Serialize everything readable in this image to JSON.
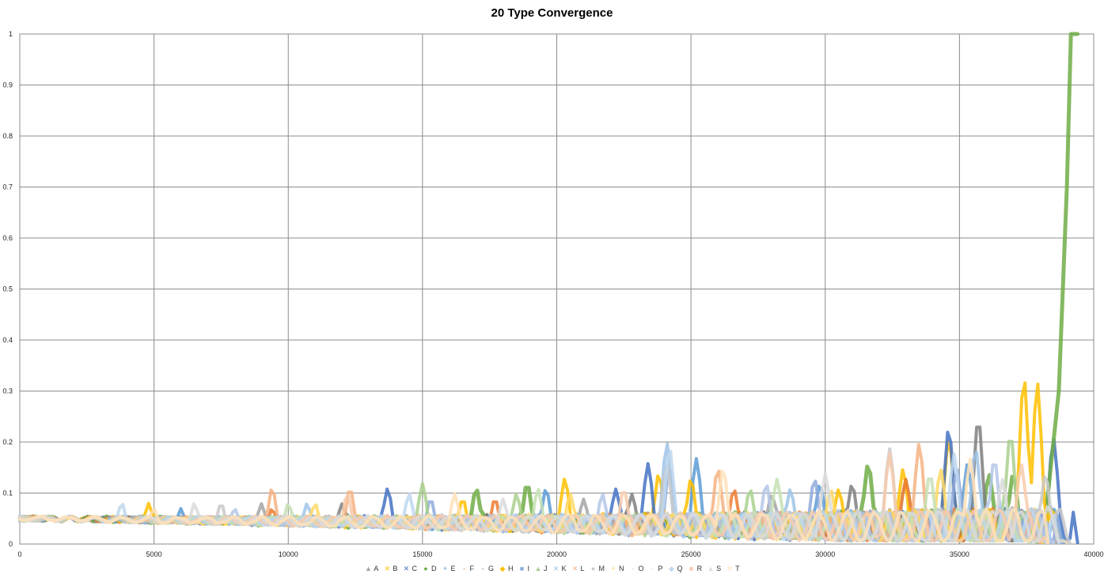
{
  "chart_data": {
    "type": "line",
    "title": "20 Type Convergence",
    "xlabel": "",
    "ylabel": "",
    "xlim": [
      0,
      40000
    ],
    "ylim": [
      0,
      1
    ],
    "x_ticks": [
      "0",
      "5000",
      "10000",
      "15000",
      "20000",
      "25000",
      "30000",
      "35000",
      "40000"
    ],
    "y_ticks": [
      "0",
      "0.1",
      "0.2",
      "0.3",
      "0.4",
      "0.5",
      "0.6",
      "0.7",
      "0.8",
      "0.9",
      "1"
    ],
    "grid": true,
    "legend_position": "bottom",
    "series": [
      {
        "name": "A",
        "marker": "▲",
        "color": "#a5a5a5",
        "peaks": [
          [
            9000,
            0.07
          ],
          [
            21000,
            0.08
          ],
          [
            28000,
            0.09
          ],
          [
            33000,
            0.12
          ]
        ],
        "end": 38500
      },
      {
        "name": "B",
        "marker": "✕",
        "color": "#ffc000",
        "peaks": [
          [
            4800,
            0.07
          ],
          [
            20300,
            0.12
          ],
          [
            23800,
            0.13
          ],
          [
            32900,
            0.14
          ],
          [
            34600,
            0.2
          ]
        ],
        "end": 38200
      },
      {
        "name": "C",
        "marker": "✕",
        "color": "#4472c4",
        "peaks": [
          [
            13700,
            0.1
          ],
          [
            22200,
            0.1
          ],
          [
            23400,
            0.15
          ],
          [
            34600,
            0.22
          ],
          [
            38500,
            0.2
          ]
        ],
        "end": 39300
      },
      {
        "name": "D",
        "marker": "●",
        "color": "#70ad47",
        "peaks": [
          [
            17000,
            0.1
          ],
          [
            18900,
            0.11
          ],
          [
            31600,
            0.15
          ],
          [
            36100,
            0.13
          ],
          [
            37000,
            0.13
          ]
        ],
        "end": 38000,
        "final": [
          [
            38300,
            0.1
          ],
          [
            38700,
            0.3
          ],
          [
            39000,
            0.7
          ],
          [
            39150,
            1.0
          ],
          [
            39400,
            1.0
          ]
        ]
      },
      {
        "name": "E",
        "marker": "+",
        "color": "#5b9bd5",
        "peaks": [
          [
            6000,
            0.06
          ],
          [
            19600,
            0.1
          ],
          [
            25200,
            0.16
          ],
          [
            29800,
            0.11
          ],
          [
            35300,
            0.15
          ]
        ],
        "end": 38800
      },
      {
        "name": "F",
        "marker": "-",
        "color": "#ed7d31",
        "peaks": [
          [
            9400,
            0.06
          ],
          [
            17700,
            0.08
          ],
          [
            26600,
            0.1
          ],
          [
            33000,
            0.12
          ]
        ],
        "end": 38000
      },
      {
        "name": "G",
        "marker": "-",
        "color": "#7f7f7f",
        "peaks": [
          [
            12000,
            0.07
          ],
          [
            22800,
            0.09
          ],
          [
            31000,
            0.11
          ],
          [
            35700,
            0.24
          ]
        ],
        "end": 37800
      },
      {
        "name": "H",
        "marker": "◆",
        "color": "#ffc000",
        "peaks": [
          [
            16500,
            0.08
          ],
          [
            25000,
            0.12
          ],
          [
            30500,
            0.1
          ],
          [
            37400,
            0.32
          ],
          [
            37900,
            0.31
          ]
        ],
        "end": 38900
      },
      {
        "name": "I",
        "marker": "■",
        "color": "#8faadc",
        "peaks": [
          [
            15300,
            0.08
          ],
          [
            24200,
            0.14
          ],
          [
            29600,
            0.12
          ],
          [
            34900,
            0.14
          ]
        ],
        "end": 38700
      },
      {
        "name": "J",
        "marker": "▲",
        "color": "#a9d08e",
        "peaks": [
          [
            15000,
            0.11
          ],
          [
            18500,
            0.09
          ],
          [
            27200,
            0.1
          ],
          [
            36900,
            0.21
          ]
        ],
        "end": 37800
      },
      {
        "name": "K",
        "marker": "✕",
        "color": "#9dc3e6",
        "peaks": [
          [
            10700,
            0.07
          ],
          [
            24100,
            0.19
          ],
          [
            28700,
            0.1
          ],
          [
            35600,
            0.18
          ]
        ],
        "end": 38300
      },
      {
        "name": "L",
        "marker": "✕",
        "color": "#f4b183",
        "peaks": [
          [
            9400,
            0.1
          ],
          [
            12300,
            0.1
          ],
          [
            26000,
            0.14
          ],
          [
            33500,
            0.19
          ]
        ],
        "end": 37900
      },
      {
        "name": "M",
        "marker": "●",
        "color": "#c9c9c9",
        "peaks": [
          [
            7500,
            0.07
          ],
          [
            24100,
            0.15
          ],
          [
            32400,
            0.18
          ],
          [
            38200,
            0.13
          ]
        ],
        "end": 39000
      },
      {
        "name": "N",
        "marker": "+",
        "color": "#ffd966",
        "peaks": [
          [
            11000,
            0.07
          ],
          [
            20500,
            0.09
          ],
          [
            30200,
            0.1
          ],
          [
            34300,
            0.14
          ]
        ],
        "end": 38000
      },
      {
        "name": "O",
        "marker": "-",
        "color": "#b4c7e7",
        "peaks": [
          [
            8000,
            0.06
          ],
          [
            21700,
            0.09
          ],
          [
            27800,
            0.11
          ],
          [
            36300,
            0.16
          ]
        ],
        "end": 38400
      },
      {
        "name": "P",
        "marker": "-",
        "color": "#c5e0b4",
        "peaks": [
          [
            10000,
            0.07
          ],
          [
            19300,
            0.1
          ],
          [
            28200,
            0.12
          ],
          [
            33900,
            0.13
          ]
        ],
        "end": 37500
      },
      {
        "name": "Q",
        "marker": "◆",
        "color": "#bdd7ee",
        "peaks": [
          [
            3800,
            0.07
          ],
          [
            14500,
            0.09
          ],
          [
            24200,
            0.18
          ],
          [
            34800,
            0.17
          ]
        ],
        "end": 38600
      },
      {
        "name": "R",
        "marker": "■",
        "color": "#f8cbad",
        "peaks": [
          [
            12200,
            0.09
          ],
          [
            22500,
            0.1
          ],
          [
            32400,
            0.17
          ],
          [
            37300,
            0.15
          ]
        ],
        "end": 38200
      },
      {
        "name": "S",
        "marker": "▲",
        "color": "#dbdbdb",
        "peaks": [
          [
            6500,
            0.07
          ],
          [
            18000,
            0.08
          ],
          [
            30000,
            0.13
          ],
          [
            36600,
            0.12
          ]
        ],
        "end": 38900
      },
      {
        "name": "T",
        "marker": "✕",
        "color": "#ffe0b8",
        "peaks": [
          [
            5000,
            0.06
          ],
          [
            16200,
            0.09
          ],
          [
            26200,
            0.14
          ],
          [
            35400,
            0.16
          ]
        ],
        "end": 38200
      }
    ]
  }
}
